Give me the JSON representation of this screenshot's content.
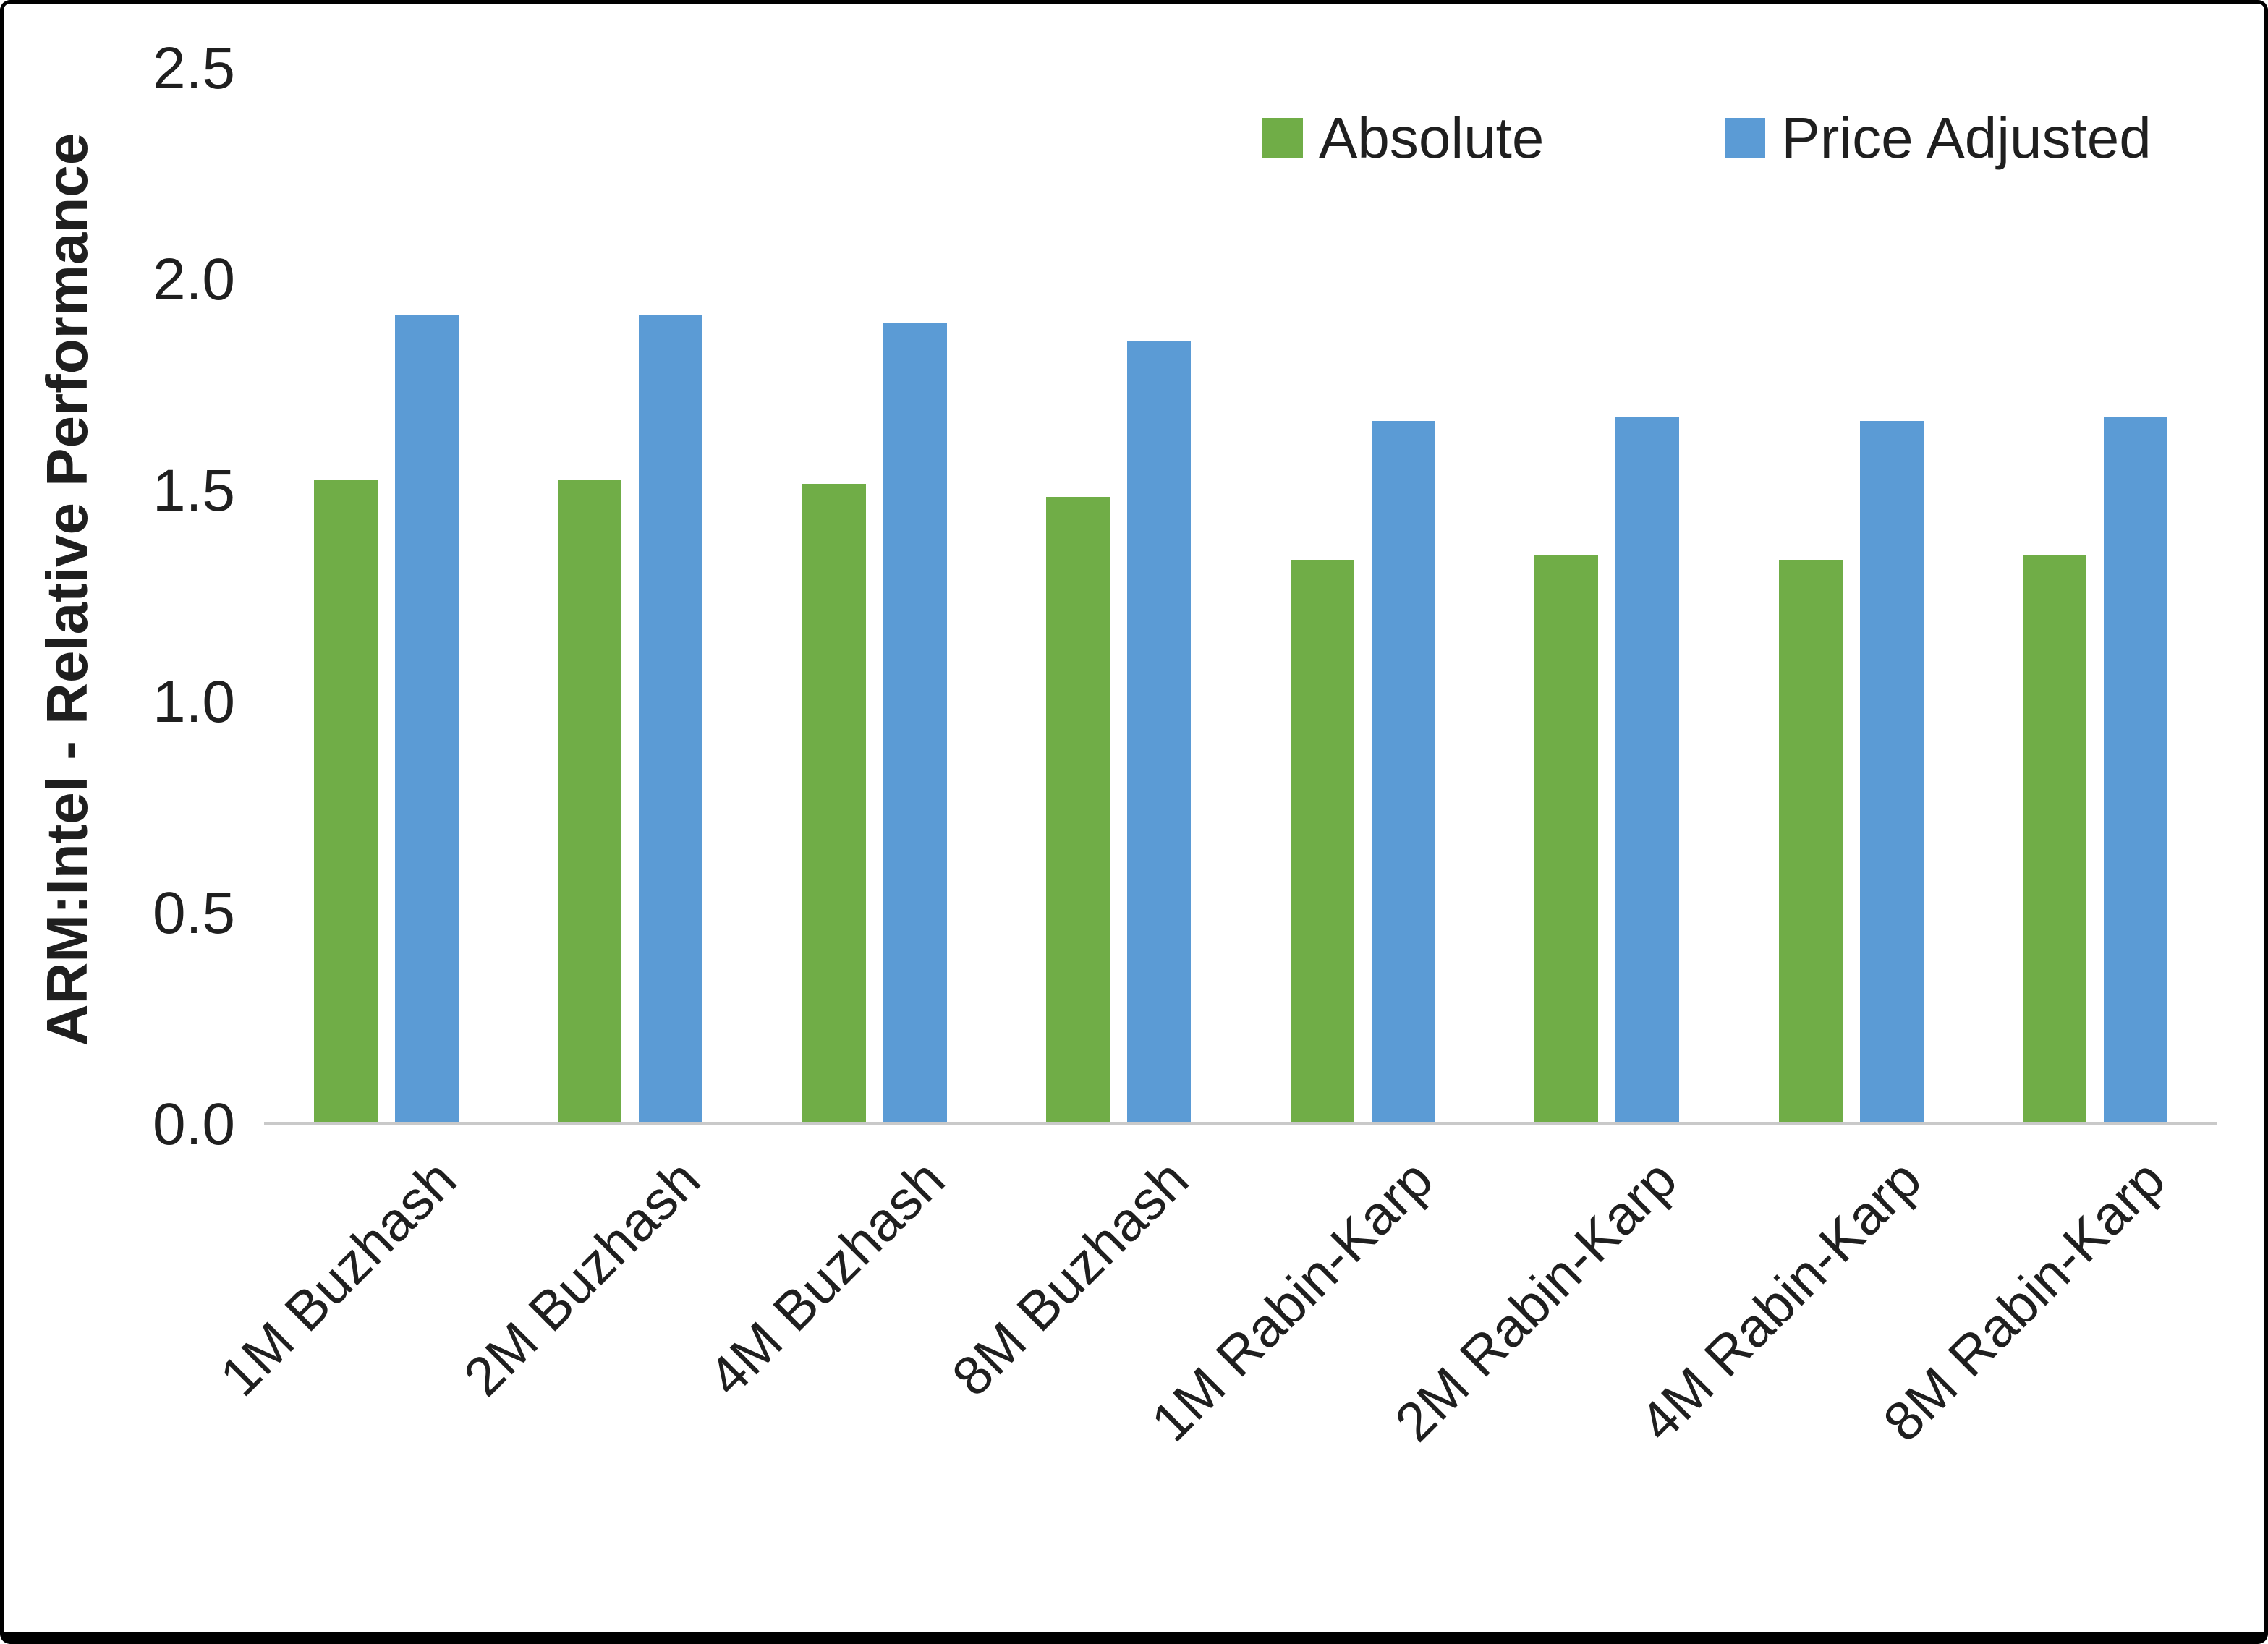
{
  "chart_data": {
    "type": "bar",
    "title": "",
    "xlabel": "",
    "ylabel": "ARM:Intel - Relative Performance",
    "ylim": [
      0,
      2.5
    ],
    "yticks": [
      "0.0",
      "0.5",
      "1.0",
      "1.5",
      "2.0",
      "2.5"
    ],
    "grid": false,
    "legend_position": "top-right",
    "categories": [
      "1M Buzhash",
      "2M Buzhash",
      "4M Buzhash",
      "8M Buzhash",
      "1M Rabin-Karp",
      "2M Rabin-Karp",
      "4M Rabin-Karp",
      "8M Rabin-Karp"
    ],
    "series": [
      {
        "name": "Absolute",
        "color": "#70AD47",
        "values": [
          1.52,
          1.52,
          1.51,
          1.48,
          1.33,
          1.34,
          1.33,
          1.34
        ]
      },
      {
        "name": "Price Adjusted",
        "color": "#5B9BD5",
        "values": [
          1.91,
          1.91,
          1.89,
          1.85,
          1.66,
          1.67,
          1.66,
          1.67
        ]
      }
    ],
    "colors": {
      "axis_line": "#c9c9c9",
      "text": "#1f1f1f",
      "frame_border": "#000000"
    }
  }
}
